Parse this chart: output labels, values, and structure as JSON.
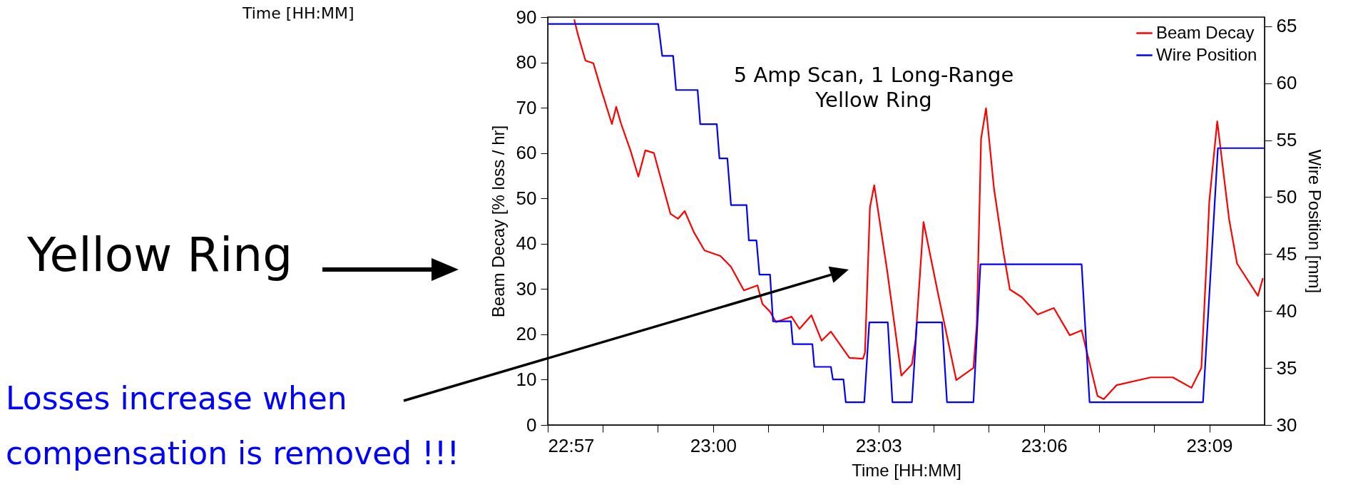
{
  "chart_data": {
    "type": "line",
    "xlabel": "Time [HH:MM]",
    "ylabel": "Beam Decay [% loss / hr]",
    "y2label": "Wire Position [mm]",
    "xlim": [
      22.95,
      23.1667
    ],
    "xticks": [
      {
        "value": 22.95,
        "label": "22:57"
      },
      {
        "value": 22.9667,
        "label": null
      },
      {
        "value": 22.9833,
        "label": null
      },
      {
        "value": 23.0,
        "label": "23:00"
      },
      {
        "value": 23.0167,
        "label": null
      },
      {
        "value": 23.0333,
        "label": null
      },
      {
        "value": 23.05,
        "label": "23:03"
      },
      {
        "value": 23.0667,
        "label": null
      },
      {
        "value": 23.0833,
        "label": null
      },
      {
        "value": 23.1,
        "label": "23:06"
      },
      {
        "value": 23.1167,
        "label": null
      },
      {
        "value": 23.1333,
        "label": null
      },
      {
        "value": 23.15,
        "label": "23:09"
      }
    ],
    "ylim": [
      0,
      90
    ],
    "yticks": [
      0,
      10,
      20,
      30,
      40,
      50,
      60,
      70,
      80,
      90
    ],
    "y2lim": [
      30,
      65.8
    ],
    "y2ticks": [
      30,
      35,
      40,
      45,
      50,
      55,
      60,
      65
    ],
    "legend": "top right",
    "series": [
      {
        "name": "Beam Decay",
        "color": "#ff0000",
        "x": [
          22.958,
          22.9591,
          22.9614,
          22.9638,
          22.9659,
          22.9694,
          22.9707,
          22.9722,
          22.975,
          22.9774,
          22.9795,
          22.9821,
          22.9847,
          22.9871,
          22.9894,
          22.9914,
          22.9942,
          22.9974,
          23.0022,
          23.0054,
          23.0093,
          23.0134,
          23.0149,
          23.0172,
          23.019,
          23.0237,
          23.0261,
          23.0297,
          23.0328,
          23.0356,
          23.0412,
          23.0453,
          23.0459,
          23.0474,
          23.0487,
          23.0526,
          23.0569,
          23.0601,
          23.0612,
          23.0636,
          23.0679,
          23.0735,
          23.0787,
          23.0797,
          23.081,
          23.0825,
          23.0849,
          23.0877,
          23.0897,
          23.0933,
          23.0981,
          23.103,
          23.1078,
          23.1114,
          23.1162,
          23.1181,
          23.122,
          23.1323,
          23.139,
          23.1446,
          23.1476,
          23.1494,
          23.15,
          23.1524,
          23.156,
          23.1584,
          23.1647,
          23.1662
        ],
        "values": [
          89.5,
          86.2,
          80.4,
          79.8,
          74.6,
          66.4,
          70.2,
          66.4,
          60.6,
          54.8,
          60.6,
          60.0,
          53.0,
          46.6,
          45.5,
          47.2,
          42.5,
          38.5,
          37.3,
          34.9,
          29.7,
          30.8,
          26.7,
          25.0,
          22.7,
          23.9,
          21.2,
          24.2,
          18.6,
          20.6,
          14.8,
          14.6,
          16.0,
          48.0,
          52.9,
          34.1,
          10.9,
          13.4,
          18.9,
          44.8,
          29.3,
          9.9,
          12.6,
          22.3,
          63.2,
          69.9,
          52.2,
          38.4,
          29.9,
          28.2,
          24.4,
          25.8,
          19.8,
          20.9,
          6.4,
          5.7,
          8.8,
          10.5,
          10.5,
          8.2,
          12.6,
          39.6,
          49.4,
          67.0,
          45.3,
          35.6,
          28.5,
          32.4
        ]
      },
      {
        "name": "Wire Position",
        "color": "#0000ff",
        "axis": "y2",
        "x": [
          22.95,
          22.9834,
          22.9846,
          22.9879,
          22.9888,
          22.9953,
          22.9961,
          23.0011,
          23.0019,
          23.0043,
          23.0054,
          23.0101,
          23.0108,
          23.0131,
          23.014,
          23.0172,
          23.0181,
          23.0235,
          23.0241,
          23.03,
          23.0306,
          23.0356,
          23.0362,
          23.0394,
          23.0401,
          23.0457,
          23.0472,
          23.0528,
          23.0542,
          23.0601,
          23.0616,
          23.0692,
          23.0707,
          23.0787,
          23.0808,
          23.1114,
          23.1138,
          23.1481,
          23.1526,
          23.1666
        ],
        "values": [
          65.2,
          65.2,
          62.4,
          62.4,
          59.4,
          59.4,
          56.4,
          56.4,
          53.4,
          53.4,
          49.3,
          49.3,
          46.2,
          46.2,
          43.2,
          43.2,
          39.1,
          39.1,
          37.1,
          37.1,
          35.1,
          35.1,
          34.0,
          34.0,
          32.0,
          32.0,
          39.0,
          39.0,
          32.0,
          32.0,
          39.0,
          39.0,
          32.0,
          32.0,
          44.1,
          44.1,
          32.0,
          32.0,
          54.3,
          54.3
        ]
      }
    ],
    "annotations": [
      "Time [HH:MM]",
      "5 Amp Scan, 1 Long-Range\nYellow Ring",
      "Yellow Ring",
      "Losses increase when\ncompensation is removed !!!"
    ]
  }
}
